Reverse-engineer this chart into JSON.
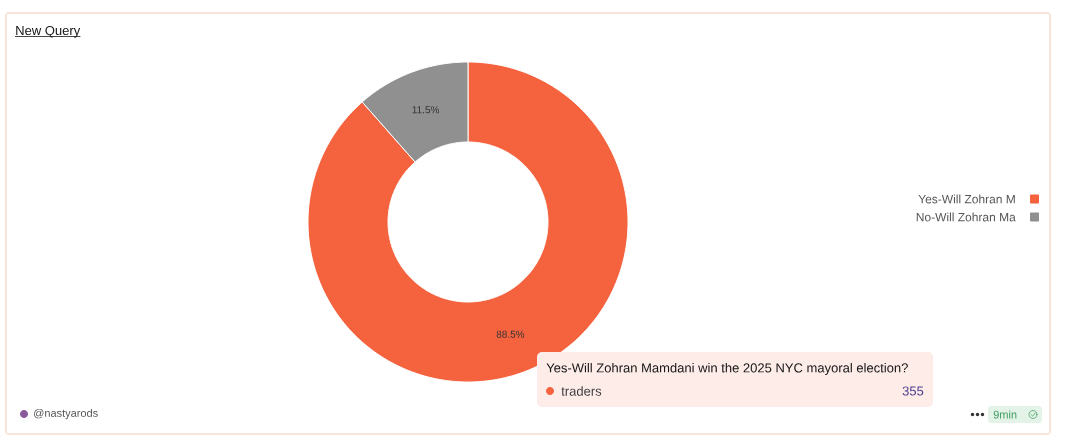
{
  "chart_data": {
    "type": "donut",
    "title": "New Query",
    "categories": [
      "Yes-Will Zohran M",
      "No-Will Zohran Ma"
    ],
    "values": [
      88.5,
      11.5
    ],
    "colors": [
      "#f5623e",
      "#909090"
    ],
    "value_labels": [
      "88.5%",
      "11.5%"
    ],
    "legend": "right",
    "annotations": [
      "Yes-Will Zohran Mamdani win the 2025 NYC mayoral election?",
      "traders",
      "355",
      "@nastyarods",
      "9min"
    ]
  }
}
